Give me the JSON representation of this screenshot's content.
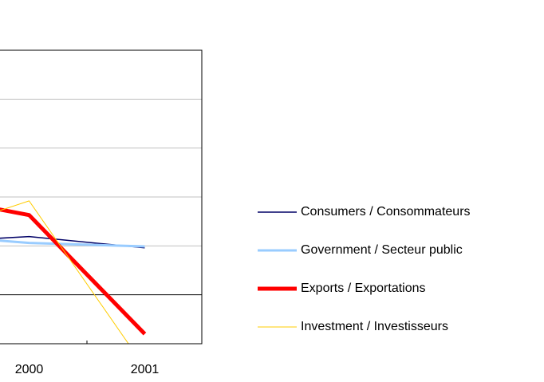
{
  "chart_data": {
    "type": "line",
    "categories": [
      null,
      "2000",
      "2001"
    ],
    "series": [
      {
        "name": "Consumers / Consommateurs",
        "color": "#000066",
        "width": 1.5,
        "values": [
          1.06,
          1.19,
          0.96
        ]
      },
      {
        "name": "Government / Secteur public",
        "color": "#99ccff",
        "width": 3,
        "values": [
          1.25,
          1.06,
          0.99
        ]
      },
      {
        "name": "Exports / Exportations",
        "color": "#ff0000",
        "width": 5,
        "values": [
          2.08,
          1.63,
          -0.8
        ]
      },
      {
        "name": "Investment / Investisseurs",
        "color": "#ffcc00",
        "width": 1,
        "values": [
          1.14,
          1.92,
          -1.48
        ]
      }
    ],
    "ylim": [
      -1,
      5
    ],
    "yticks": [
      0,
      1,
      2,
      3,
      4
    ],
    "grid": true,
    "legend": "right"
  }
}
